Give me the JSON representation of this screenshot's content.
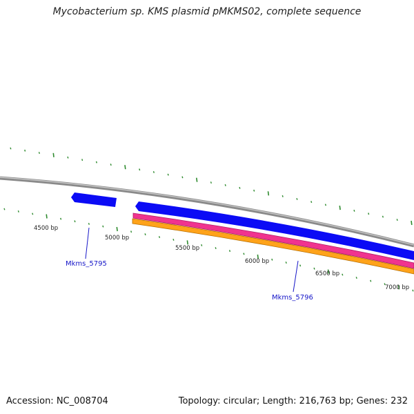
{
  "title": "Mycobacterium sp. KMS plasmid pMKMS02, complete sequence",
  "footer": {
    "accession": "Accession: NC_008704",
    "summary": "Topology: circular; Length: 216,763 bp; Genes: 232"
  },
  "colors": {
    "backbone": "#8a8a8a",
    "gene": "#0b0bf5",
    "feature_pink": "#f0348f",
    "feature_orange": "#ffa31a",
    "tick": "#2d8a2d",
    "gene_label": "#1515c8"
  },
  "scale_labels": [
    "4500 bp",
    "5000 bp",
    "5500 bp",
    "6000 bp",
    "6500 bp",
    "7000 bp"
  ],
  "genes": [
    {
      "id": "Mkms_5795",
      "label": "Mkms_5795",
      "strand": "reverse"
    },
    {
      "id": "Mkms_5796",
      "label": "Mkms_5796",
      "strand": "reverse"
    }
  ]
}
